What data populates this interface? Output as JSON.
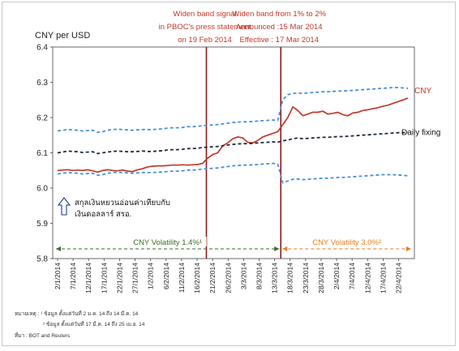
{
  "chart_data": {
    "type": "line",
    "ylabel": "CNY per USD",
    "ylim": [
      5.8,
      6.4
    ],
    "yticks": [
      "5.8",
      "5.9",
      "6.0",
      "6.1",
      "6.2",
      "6.3",
      "6.4"
    ],
    "xticks": [
      "2/1/2014",
      "7/1/2014",
      "12/1/2014",
      "17/1/2014",
      "22/1/2014",
      "27/1/2014",
      "1/2/2014",
      "6/2/2014",
      "11/2/2014",
      "16/2/2014",
      "21/2/2014",
      "26/2/2014",
      "3/3/2014",
      "8/3/2014",
      "13/3/2014",
      "18/3/2014",
      "23/3/2014",
      "28/3/2014",
      "2/4/2014",
      "7/4/2014",
      "12/4/2014",
      "17/4/2014",
      "22/4/2014"
    ],
    "x_start": "2014-01-02",
    "series": [
      {
        "name": "CNY",
        "color": "#c0392b",
        "style": "solid",
        "values": [
          6.05,
          6.051,
          6.052,
          6.05,
          6.051,
          6.05,
          6.052,
          6.049,
          6.045,
          6.05,
          6.052,
          6.05,
          6.049,
          6.051,
          6.048,
          6.047,
          6.052,
          6.055,
          6.06,
          6.062,
          6.063,
          6.063,
          6.064,
          6.065,
          6.065,
          6.066,
          6.065,
          6.066,
          6.067,
          6.07,
          6.085,
          6.095,
          6.1,
          6.12,
          6.128,
          6.14,
          6.145,
          6.142,
          6.13,
          6.128,
          6.135,
          6.145,
          6.15,
          6.155,
          6.16,
          6.18,
          6.2,
          6.23,
          6.22,
          6.205,
          6.21,
          6.215,
          6.215,
          6.218,
          6.21,
          6.212,
          6.215,
          6.208,
          6.205,
          6.213,
          6.215,
          6.22,
          6.222,
          6.225,
          6.228,
          6.232,
          6.235,
          6.24,
          6.245,
          6.25,
          6.255
        ]
      },
      {
        "name": "Daily fixing",
        "color": "#1f2d3d",
        "style": "dashed",
        "values": [
          6.1,
          6.102,
          6.105,
          6.104,
          6.103,
          6.101,
          6.102,
          6.103,
          6.098,
          6.1,
          6.102,
          6.104,
          6.105,
          6.104,
          6.103,
          6.103,
          6.104,
          6.105,
          6.104,
          6.104,
          6.105,
          6.106,
          6.108,
          6.109,
          6.109,
          6.11,
          6.112,
          6.112,
          6.113,
          6.115,
          6.116,
          6.117,
          6.118,
          6.12,
          6.122,
          6.124,
          6.125,
          6.126,
          6.126,
          6.127,
          6.128,
          6.129,
          6.13,
          6.131,
          6.13,
          6.134,
          6.136,
          6.14,
          6.142,
          6.14,
          6.141,
          6.142,
          6.143,
          6.144,
          6.144,
          6.145,
          6.146,
          6.146,
          6.147,
          6.148,
          6.149,
          6.15,
          6.151,
          6.152,
          6.153,
          6.154,
          6.155,
          6.156,
          6.157,
          6.157,
          6.158
        ]
      },
      {
        "name": "Upper band",
        "color": "#4a90d9",
        "style": "dashed",
        "values": [
          6.162,
          6.164,
          6.166,
          6.165,
          6.164,
          6.162,
          6.163,
          6.164,
          6.158,
          6.16,
          6.164,
          6.166,
          6.167,
          6.166,
          6.165,
          6.164,
          6.165,
          6.166,
          6.166,
          6.166,
          6.167,
          6.168,
          6.17,
          6.171,
          6.171,
          6.172,
          6.174,
          6.174,
          6.175,
          6.177,
          6.178,
          6.179,
          6.18,
          6.182,
          6.184,
          6.186,
          6.187,
          6.188,
          6.188,
          6.189,
          6.19,
          6.191,
          6.192,
          6.193,
          6.192,
          6.25,
          6.265,
          6.268,
          6.27,
          6.268,
          6.27,
          6.271,
          6.272,
          6.273,
          6.273,
          6.274,
          6.275,
          6.275,
          6.276,
          6.277,
          6.278,
          6.279,
          6.28,
          6.281,
          6.282,
          6.283,
          6.284,
          6.285,
          6.285,
          6.284,
          6.283
        ]
      },
      {
        "name": "Lower band",
        "color": "#4a90d9",
        "style": "dashed",
        "values": [
          6.04,
          6.042,
          6.044,
          6.043,
          6.042,
          6.04,
          6.041,
          6.042,
          6.036,
          6.038,
          6.042,
          6.044,
          6.045,
          6.044,
          6.043,
          6.042,
          6.043,
          6.044,
          6.044,
          6.044,
          6.045,
          6.046,
          6.047,
          6.048,
          6.048,
          6.049,
          6.051,
          6.051,
          6.052,
          6.054,
          6.055,
          6.056,
          6.057,
          6.059,
          6.061,
          6.063,
          6.064,
          6.065,
          6.065,
          6.066,
          6.067,
          6.068,
          6.069,
          6.07,
          6.068,
          6.015,
          6.02,
          6.025,
          6.026,
          6.024,
          6.025,
          6.026,
          6.027,
          6.028,
          6.028,
          6.029,
          6.03,
          6.03,
          6.031,
          6.032,
          6.033,
          6.034,
          6.035,
          6.036,
          6.037,
          6.038,
          6.038,
          6.038,
          6.037,
          6.036,
          6.035
        ]
      }
    ],
    "events": [
      {
        "date": "2014-02-19",
        "lines": [
          "Widen band signal",
          "in PBOC's press statement",
          "on 19 Feb 2014"
        ]
      },
      {
        "date": "2014-03-15",
        "lines": [
          "Widen band from 1% to 2%",
          "Announced :15 Mar 2014",
          "Effective : 17 Mar 2014"
        ]
      }
    ],
    "series_labels": {
      "cny": "CNY",
      "fixing": "Daily fixing"
    },
    "periods": [
      {
        "label": "CNY Volatility  1.4%¹",
        "color": "#3a6b2a"
      },
      {
        "label": "CNY Volatility  3.0%²",
        "color": "#e67e22"
      }
    ],
    "thai_note": [
      "สกุลเงินหยวนอ่อนค่าเทียบกับ",
      "เงินดอลลาร์ สรอ."
    ],
    "footnotes": [
      "หมายเหตุ : ¹ ข้อมูล ตั้งแต่วันที่ 2 ม.ค. 14 ถึง 14 มี.ค. 14",
      "² ข้อมูล ตั้งแต่วันที่ 17 มี.ค. 14 ถึง 25 เม.ย. 14",
      "ที่มา : BOT and Reuters"
    ]
  }
}
